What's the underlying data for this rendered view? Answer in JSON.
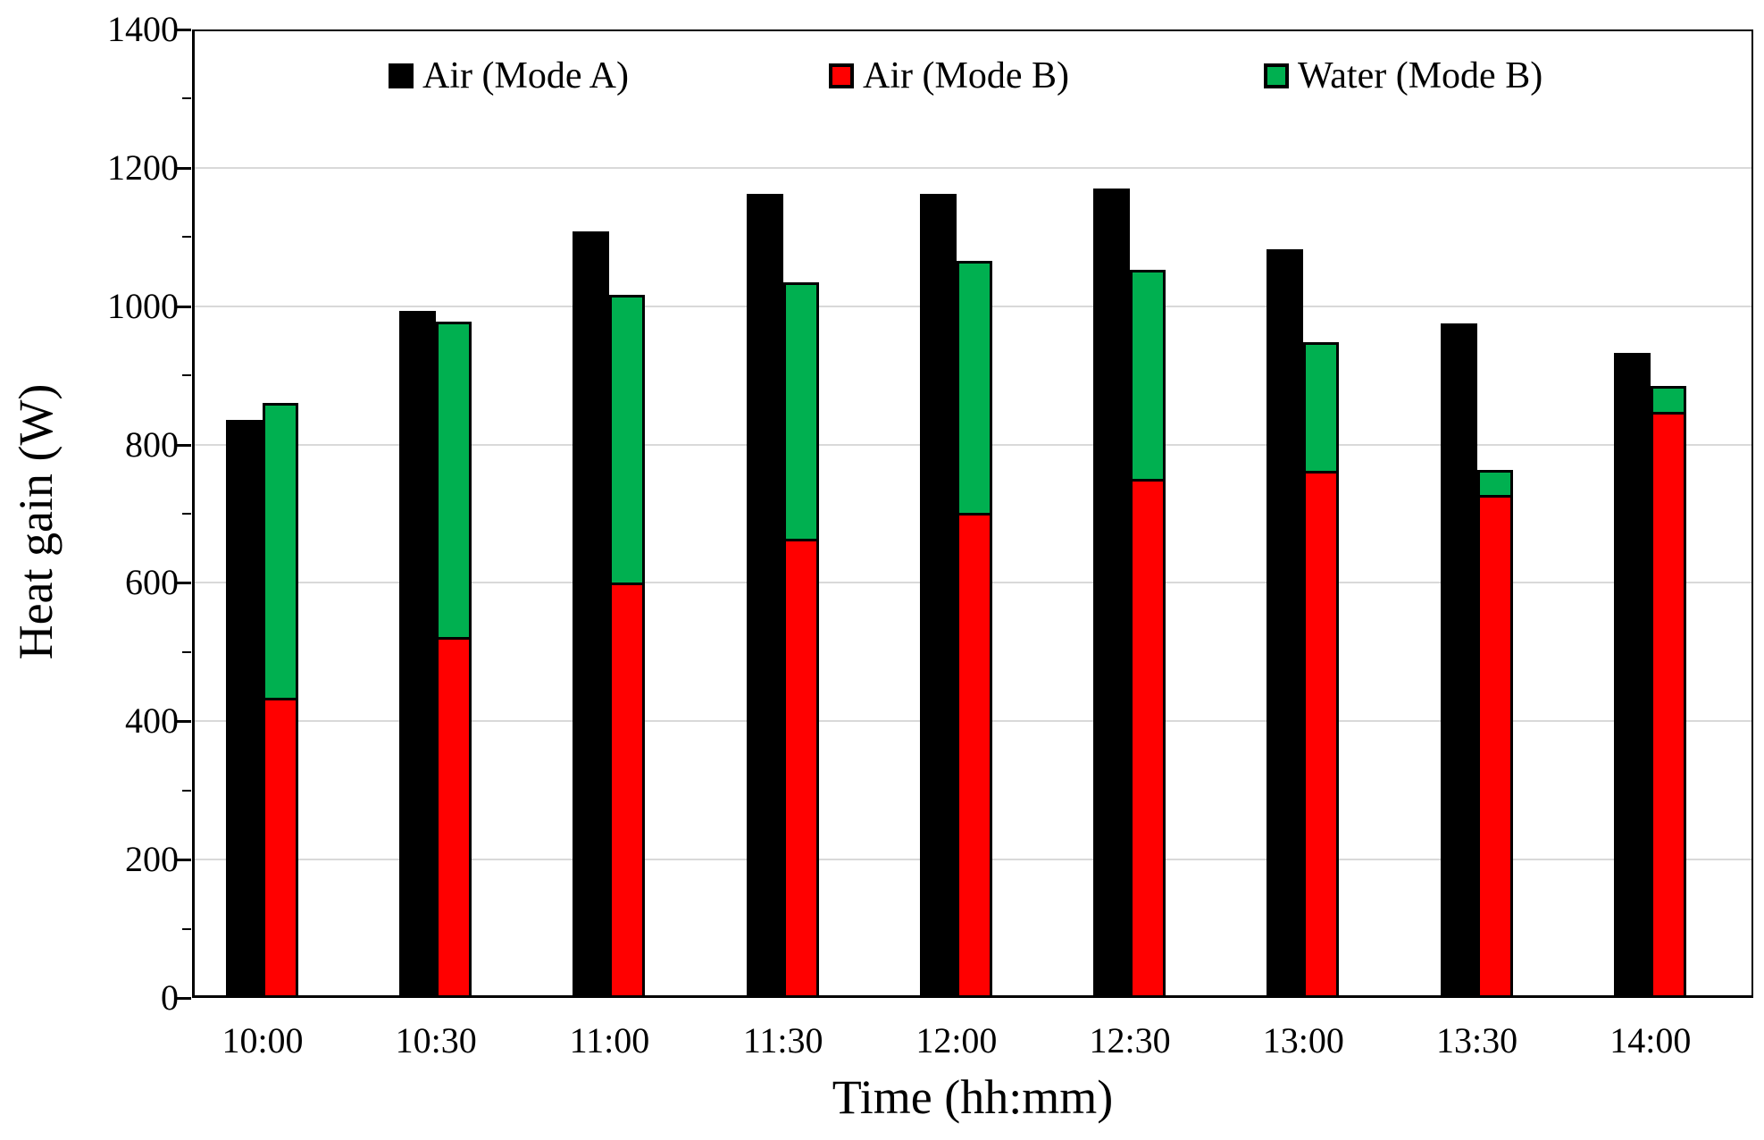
{
  "chart_data": {
    "type": "bar",
    "title": "",
    "xlabel": "Time (hh:mm)",
    "ylabel": "Heat gain (W)",
    "ylim": [
      0,
      1400
    ],
    "ytick_step": 200,
    "yminor_tick_step": 100,
    "grid": "horizontal gridlines at 200..1200",
    "legend_position": "top inside plot area",
    "bar_arrangement": "per category: solid black Mode A bar beside a stacked Mode B bar (red air bottom + green water top)",
    "categories": [
      "10:00",
      "10:30",
      "11:00",
      "11:30",
      "12:00",
      "12:30",
      "13:00",
      "13:30",
      "14:00"
    ],
    "series": [
      {
        "name": "Air (Mode A)",
        "color": "#000000",
        "stack": null,
        "values": [
          835,
          993,
          1108,
          1162,
          1163,
          1170,
          1082,
          975,
          933
        ]
      },
      {
        "name": "Air (Mode B)",
        "color": "#FF0000",
        "stack": "modeB",
        "values": [
          430,
          518,
          597,
          660,
          697,
          747,
          758,
          723,
          843
        ]
      },
      {
        "name": "Water (Mode B)",
        "color": "#00B050",
        "stack": "modeB",
        "values": [
          430,
          460,
          420,
          375,
          368,
          305,
          190,
          40,
          42
        ]
      }
    ],
    "mode_b_stack_totals": [
      860,
      978,
      1017,
      1035,
      1065,
      1052,
      948,
      763,
      885
    ],
    "colors": {
      "gridline": "#D9D9D9",
      "axis": "#000000",
      "background": "#FFFFFF"
    }
  }
}
